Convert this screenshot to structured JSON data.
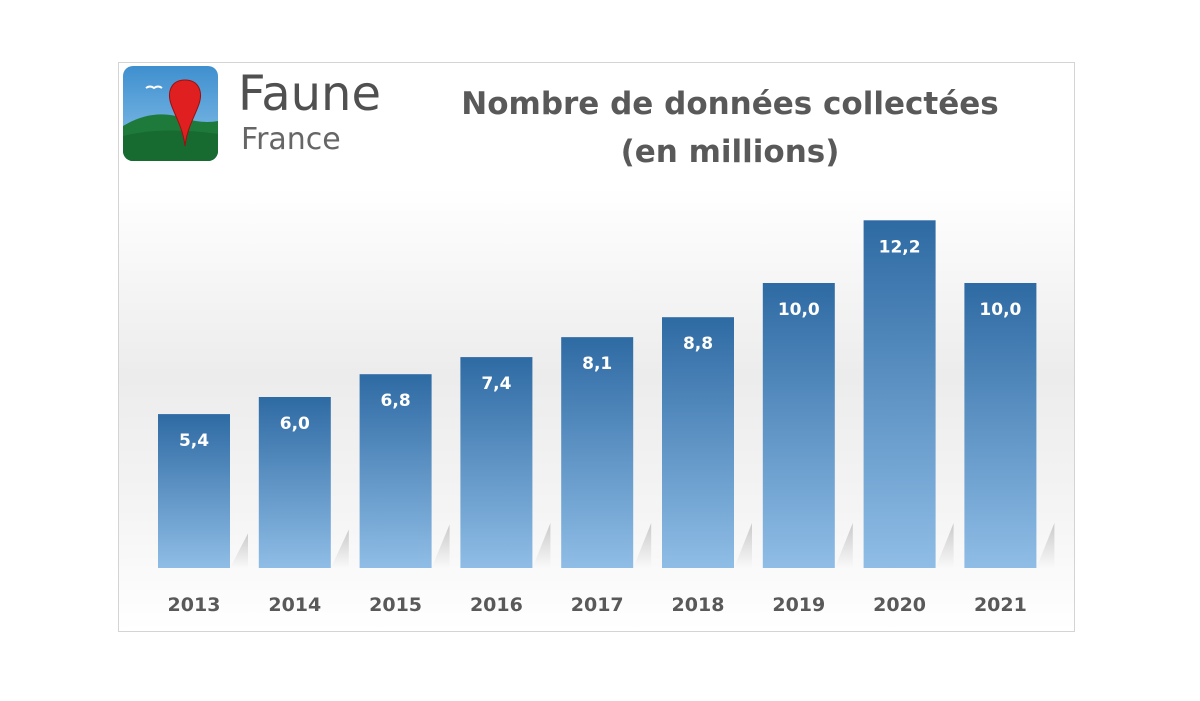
{
  "brand": {
    "name": "Faune",
    "sub": "France",
    "colors": {
      "sky": "#4a9ad4",
      "grass": "#1e7a3a",
      "pin": "#e02020",
      "bird": "#ffffff"
    }
  },
  "chart_data": {
    "type": "bar",
    "title": "Nombre de données collectées (en millions)",
    "title_lines": [
      "Nombre de données collectées",
      "(en millions)"
    ],
    "categories": [
      "2013",
      "2014",
      "2015",
      "2016",
      "2017",
      "2018",
      "2019",
      "2020",
      "2021"
    ],
    "values": [
      5.4,
      6.0,
      6.8,
      7.4,
      8.1,
      8.8,
      10.0,
      12.2,
      10.0
    ],
    "value_labels": [
      "5,4",
      "6,0",
      "6,8",
      "7,4",
      "8,1",
      "8,8",
      "10,0",
      "12,2",
      "10,0"
    ],
    "xlabel": "",
    "ylabel": "",
    "ylim": [
      0,
      14
    ],
    "grid": false,
    "legend": "none",
    "colors": {
      "bar_top": "#2e6aa3",
      "bar_bottom": "#8fbde6",
      "value_text": "#ffffff",
      "tick_text": "#595959"
    }
  }
}
